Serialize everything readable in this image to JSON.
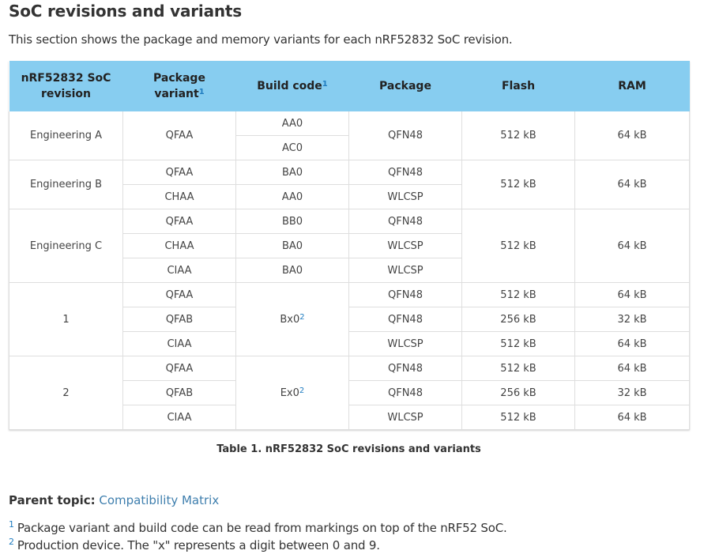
{
  "title": "SoC revisions and variants",
  "intro": "This section shows the package and memory variants for each nRF52832 SoC revision.",
  "table": {
    "headers": {
      "revision": "nRF52832 SoC revision",
      "package_variant": "Package variant",
      "package_variant_note": "1",
      "build_code": "Build code",
      "build_code_note": "1",
      "package": "Package",
      "flash": "Flash",
      "ram": "RAM"
    },
    "groups": [
      {
        "revision": "Engineering A",
        "rows": [
          {
            "variant": "QFAA",
            "build": "AA0",
            "package": "QFN48",
            "flash": "512 kB",
            "ram": "64 kB"
          },
          {
            "build": "AC0"
          }
        ]
      },
      {
        "revision": "Engineering B",
        "flash": "512 kB",
        "ram": "64 kB",
        "rows": [
          {
            "variant": "QFAA",
            "build": "BA0",
            "package": "QFN48"
          },
          {
            "variant": "CHAA",
            "build": "AA0",
            "package": "WLCSP"
          }
        ]
      },
      {
        "revision": "Engineering C",
        "flash": "512 kB",
        "ram": "64 kB",
        "rows": [
          {
            "variant": "QFAA",
            "build": "BB0",
            "package": "QFN48"
          },
          {
            "variant": "CHAA",
            "build": "BA0",
            "package": "WLCSP"
          },
          {
            "variant": "CIAA",
            "build": "BA0",
            "package": "WLCSP"
          }
        ]
      },
      {
        "revision": "1",
        "build": "Bx0",
        "build_note": "2",
        "rows": [
          {
            "variant": "QFAA",
            "package": "QFN48",
            "flash": "512 kB",
            "ram": "64 kB"
          },
          {
            "variant": "QFAB",
            "package": "QFN48",
            "flash": "256 kB",
            "ram": "32 kB"
          },
          {
            "variant": "CIAA",
            "package": "WLCSP",
            "flash": "512 kB",
            "ram": "64 kB"
          }
        ]
      },
      {
        "revision": "2",
        "build": "Ex0",
        "build_note": "2",
        "rows": [
          {
            "variant": "QFAA",
            "package": "QFN48",
            "flash": "512 kB",
            "ram": "64 kB"
          },
          {
            "variant": "QFAB",
            "package": "QFN48",
            "flash": "256 kB",
            "ram": "32 kB"
          },
          {
            "variant": "CIAA",
            "package": "WLCSP",
            "flash": "512 kB",
            "ram": "64 kB"
          }
        ]
      }
    ]
  },
  "caption": "Table 1. nRF52832 SoC revisions and variants",
  "parent_topic": {
    "label": "Parent topic:",
    "link": "Compatibility Matrix"
  },
  "footnotes": [
    {
      "mark": "1",
      "text": "Package variant and build code can be read from markings on top of the nRF52 SoC."
    },
    {
      "mark": "2",
      "text": "Production device. The \"x\" represents a digit between 0 and 9."
    }
  ],
  "colors": {
    "header_bg": "#87cdf0",
    "link": "#3f7fae",
    "footnote_mark": "#1f7cc0"
  }
}
